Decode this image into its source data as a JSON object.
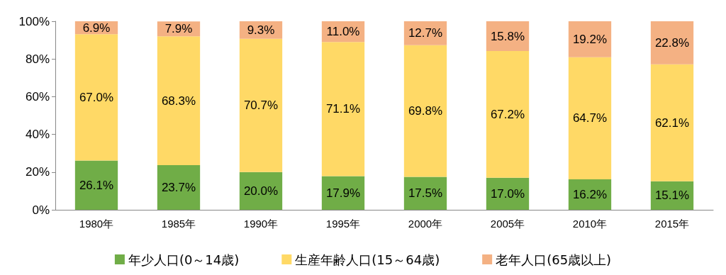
{
  "chart_data": {
    "type": "bar",
    "stacked": true,
    "categories": [
      "1980年",
      "1985年",
      "1990年",
      "1995年",
      "2000年",
      "2005年",
      "2010年",
      "2015年"
    ],
    "series": [
      {
        "name": "年少人口(0～14歳)",
        "color": "#70ad47",
        "values": [
          26.1,
          23.7,
          20.0,
          17.9,
          17.5,
          17.0,
          16.2,
          15.1
        ],
        "value_labels": [
          "26.1%",
          "23.7%",
          "20.0%",
          "17.9%",
          "17.5%",
          "17.0%",
          "16.2%",
          "15.1%"
        ]
      },
      {
        "name": "生産年齢人口(15～64歳)",
        "color": "#ffd966",
        "values": [
          67.0,
          68.3,
          70.7,
          71.1,
          69.8,
          67.2,
          64.7,
          62.1
        ],
        "value_labels": [
          "67.0%",
          "68.3%",
          "70.7%",
          "71.1%",
          "69.8%",
          "67.2%",
          "64.7%",
          "62.1%"
        ]
      },
      {
        "name": "老年人口(65歳以上)",
        "color": "#f4b183",
        "values": [
          6.9,
          7.9,
          9.3,
          11.0,
          12.7,
          15.8,
          19.2,
          22.8
        ],
        "value_labels": [
          "6.9%",
          "7.9%",
          "9.3%",
          "11.0%",
          "12.7%",
          "15.8%",
          "19.2%",
          "22.8%"
        ]
      }
    ],
    "ylim": [
      0,
      100
    ],
    "yticks": [
      {
        "value": 0,
        "label": "0%"
      },
      {
        "value": 20,
        "label": "20%"
      },
      {
        "value": 40,
        "label": "40%"
      },
      {
        "value": 60,
        "label": "60%"
      },
      {
        "value": 80,
        "label": "80%"
      },
      {
        "value": 100,
        "label": "100%"
      }
    ],
    "grid": false,
    "legend": "bottom"
  }
}
